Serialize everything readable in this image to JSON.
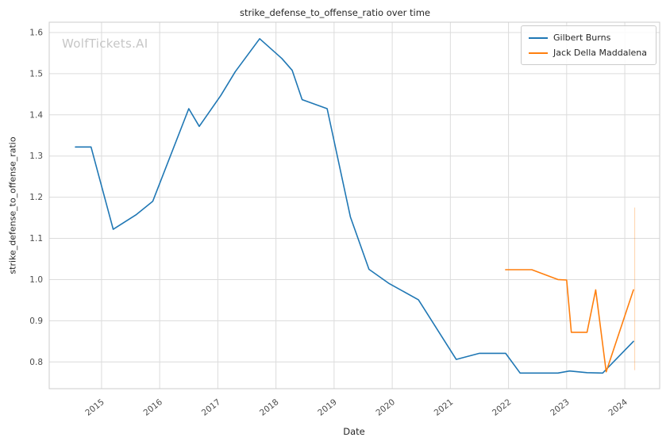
{
  "watermark": "WolfTickets.AI",
  "chart_data": {
    "type": "line",
    "title": "strike_defense_to_offense_ratio over time",
    "xlabel": "Date",
    "ylabel": "strike_defense_to_offense_ratio",
    "xlim": [
      2014.1,
      2024.6
    ],
    "ylim": [
      0.735,
      1.625
    ],
    "grid": true,
    "grid_color": "#dcdcdc",
    "spine_color": "#cccccc",
    "tick_label_color": "#4d4d4d",
    "legend_position": "top-right",
    "xtick_values": [
      2015,
      2016,
      2017,
      2018,
      2019,
      2020,
      2021,
      2022,
      2023,
      2024
    ],
    "xtick_labels": [
      "2015",
      "2016",
      "2017",
      "2018",
      "2019",
      "2020",
      "2021",
      "2022",
      "2023",
      "2024"
    ],
    "ytick_values": [
      0.8,
      0.9,
      1.0,
      1.1,
      1.2,
      1.3,
      1.4,
      1.5,
      1.6
    ],
    "ytick_labels": [
      "0.8",
      "0.9",
      "1.0",
      "1.1",
      "1.2",
      "1.3",
      "1.4",
      "1.5",
      "1.6"
    ],
    "series": [
      {
        "name": "Gilbert Burns",
        "color": "#1f77b4",
        "x": [
          2014.55,
          2014.82,
          2015.2,
          2015.6,
          2015.88,
          2016.5,
          2016.68,
          2017.05,
          2017.3,
          2017.72,
          2018.1,
          2018.28,
          2018.45,
          2018.88,
          2019.28,
          2019.6,
          2019.95,
          2020.45,
          2021.1,
          2021.5,
          2021.95,
          2022.2,
          2022.85,
          2023.05,
          2023.35,
          2023.62,
          2024.15
        ],
        "y": [
          1.322,
          1.322,
          1.122,
          1.158,
          1.19,
          1.415,
          1.372,
          1.447,
          1.505,
          1.585,
          1.537,
          1.508,
          1.437,
          1.415,
          1.152,
          1.025,
          0.99,
          0.951,
          0.806,
          0.821,
          0.821,
          0.773,
          0.773,
          0.778,
          0.774,
          0.773,
          0.85
        ]
      },
      {
        "name": "Jack Della Maddalena",
        "color": "#ff7f0e",
        "x": [
          2021.95,
          2022.4,
          2022.85,
          2023.0,
          2023.08,
          2023.35,
          2023.5,
          2023.68,
          2024.15
        ],
        "y": [
          1.024,
          1.024,
          1.0,
          0.999,
          0.872,
          0.872,
          0.975,
          0.776,
          0.975
        ]
      }
    ],
    "marker_line": {
      "x": 2024.17,
      "y_start": 0.78,
      "y_end": 1.175,
      "color": "#ff7f0e",
      "opacity": 0.3
    }
  }
}
